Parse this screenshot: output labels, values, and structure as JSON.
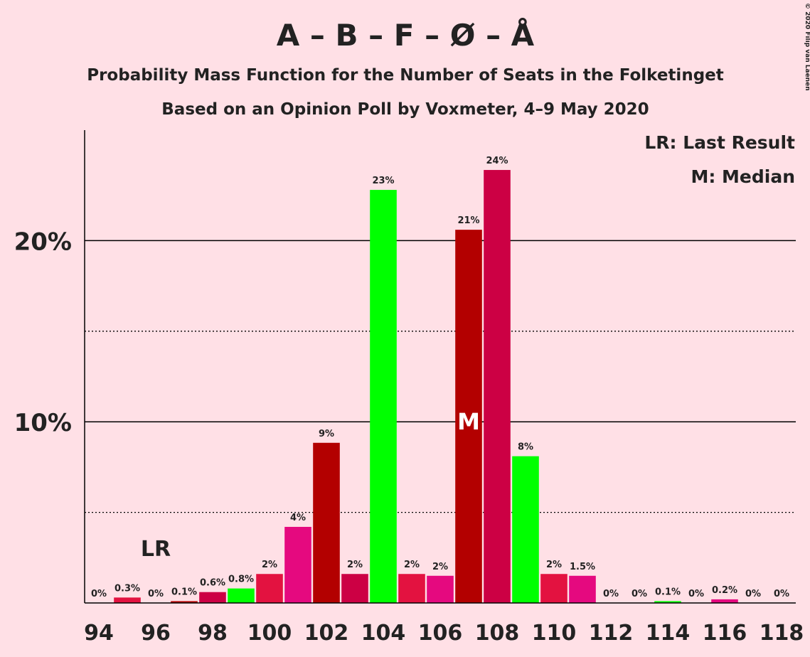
{
  "chart_data": {
    "type": "bar",
    "title": "A – B – F – Ø – Å",
    "subtitle": "Probability Mass Function for the Number of Seats in the Folketinget",
    "subtitle2": "Based on an Opinion Poll by Voxmeter, 4–9 May 2020",
    "copyright": "© 2020 Filip van Laenen",
    "legend": [
      "LR: Last Result",
      "M: Median"
    ],
    "categories": [
      "94",
      null,
      "96",
      null,
      "98",
      null,
      "100",
      null,
      "102",
      null,
      "104",
      null,
      "106",
      null,
      "108",
      null,
      "110",
      null,
      "112",
      null,
      "114",
      null,
      "116",
      null,
      "118"
    ],
    "values": [
      0,
      0.3,
      0,
      0.1,
      0.6,
      0.8,
      1.6,
      4.2,
      8.84,
      1.6,
      22.8,
      1.6,
      1.5,
      20.6,
      23.9,
      8.1,
      1.6,
      1.5,
      0,
      0,
      0.1,
      0,
      0.2,
      0,
      0
    ],
    "value_labels": [
      "0%",
      "0.3%",
      "0%",
      "0.1%",
      "0.6%",
      "0.8%",
      "2%",
      "4%",
      "9%",
      "2%",
      "23%",
      "2%",
      "2%",
      "21%",
      "24%",
      "8%",
      "2%",
      "1.5%",
      "0%",
      "0%",
      "0.1%",
      "0%",
      "0.2%",
      "0%",
      "0%"
    ],
    "colors": [
      "#e31240",
      "#e31240",
      "#e5097f",
      "#b30000",
      "#cc0044",
      "#00ff00",
      "#e31240",
      "#e5097f",
      "#b30000",
      "#cc0044",
      "#00ff00",
      "#e31240",
      "#e5097f",
      "#b30000",
      "#cc0044",
      "#00ff00",
      "#e31240",
      "#e5097f",
      "#b30000",
      "#cc0044",
      "#00ff00",
      "#e31240",
      "#e5097f",
      "#b30000",
      "#cc0044"
    ],
    "ylim": [
      0,
      26.1
    ],
    "yticks": [
      {
        "value": 10,
        "label": "10%"
      },
      {
        "value": 20,
        "label": "20%"
      }
    ],
    "minor_yticks": [
      5,
      15
    ],
    "last_result_label": "LR",
    "last_result_index": 2,
    "median_label": "M",
    "median_index": 13
  }
}
